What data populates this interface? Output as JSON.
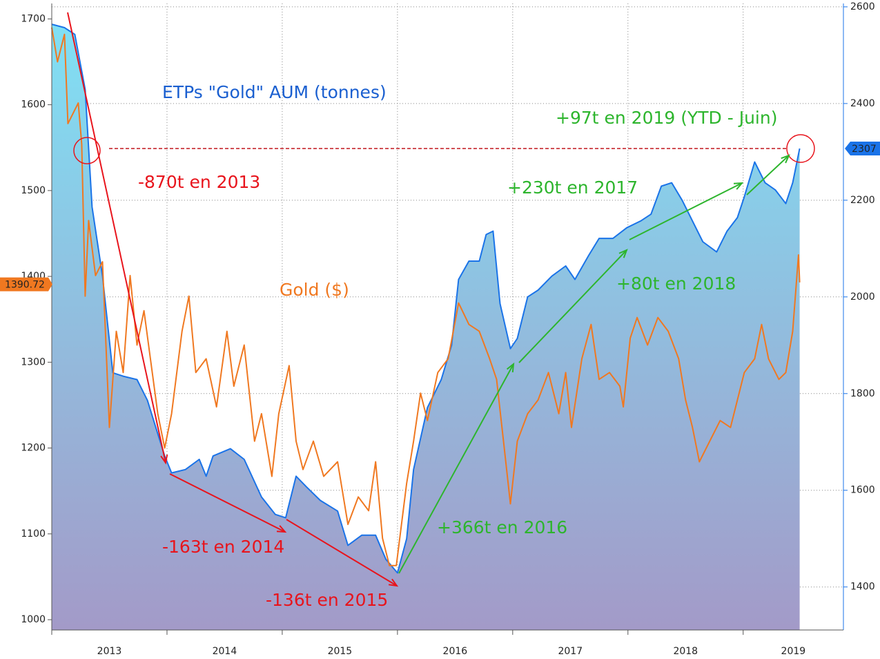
{
  "chart_data": {
    "type": "line",
    "annotations": [
      {
        "text": "ETPs \"Gold\" AUM (tonnes)",
        "color": "#1a5fd0"
      },
      {
        "text": "Gold ($)",
        "color": "#f07820"
      },
      {
        "text": "-870t en 2013",
        "color": "#e8141c"
      },
      {
        "text": "-163t en 2014",
        "color": "#e8141c"
      },
      {
        "text": "-136t en 2015",
        "color": "#e8141c"
      },
      {
        "text": "+366t en 2016",
        "color": "#2db52d"
      },
      {
        "text": "+230t en 2017",
        "color": "#2db52d"
      },
      {
        "text": "+80t en 2018",
        "color": "#2db52d"
      },
      {
        "text": "+97t en 2019 (YTD - Juin)",
        "color": "#2db52d"
      }
    ],
    "xlim": [
      2013,
      2019.87
    ],
    "xticks": [
      2013,
      2014,
      2015,
      2016,
      2017,
      2018,
      2019
    ],
    "ylim": [
      988,
      1718
    ],
    "yticks": [
      1000,
      1100,
      1200,
      1300,
      1400,
      1500,
      1600,
      1700
    ],
    "y2lim": [
      1311,
      2607
    ],
    "y2ticks": [
      1400,
      1600,
      1800,
      2000,
      2200,
      2400,
      2600
    ],
    "grid": true,
    "series": [
      {
        "name": "Gold ($)",
        "color": "#f07820",
        "axis": "y",
        "last_value": 1390.72,
        "x": [
          2013.0,
          2013.05,
          2013.11,
          2013.14,
          2013.23,
          2013.26,
          2013.29,
          2013.32,
          2013.38,
          2013.44,
          2013.5,
          2013.56,
          2013.62,
          2013.68,
          2013.74,
          2013.8,
          2013.92,
          2013.98,
          2014.04,
          2014.13,
          2014.19,
          2014.25,
          2014.34,
          2014.43,
          2014.52,
          2014.58,
          2014.67,
          2014.76,
          2014.82,
          2014.91,
          2014.97,
          2015.06,
          2015.12,
          2015.18,
          2015.27,
          2015.36,
          2015.48,
          2015.57,
          2015.66,
          2015.75,
          2015.81,
          2015.87,
          2015.93,
          2015.99,
          2016.08,
          2016.14,
          2016.2,
          2016.26,
          2016.35,
          2016.44,
          2016.53,
          2016.62,
          2016.71,
          2016.8,
          2016.86,
          2016.92,
          2016.98,
          2017.04,
          2017.13,
          2017.22,
          2017.31,
          2017.4,
          2017.46,
          2017.51,
          2017.6,
          2017.68,
          2017.75,
          2017.84,
          2017.93,
          2017.96,
          2018.02,
          2018.08,
          2018.17,
          2018.26,
          2018.35,
          2018.44,
          2018.5,
          2018.56,
          2018.62,
          2018.71,
          2018.8,
          2018.89,
          2018.95,
          2019.01,
          2019.1,
          2019.16,
          2019.22,
          2019.31,
          2019.37,
          2019.43,
          2019.48,
          2019.49
        ],
        "values": [
          1690,
          1650,
          1682,
          1578,
          1602,
          1554,
          1377,
          1465,
          1401,
          1417,
          1224,
          1336,
          1288,
          1401,
          1320,
          1360,
          1240,
          1200,
          1240,
          1336,
          1377,
          1288,
          1304,
          1248,
          1336,
          1272,
          1320,
          1208,
          1240,
          1167,
          1240,
          1296,
          1208,
          1175,
          1208,
          1167,
          1184,
          1111,
          1143,
          1127,
          1184,
          1095,
          1063,
          1063,
          1159,
          1208,
          1264,
          1232,
          1288,
          1304,
          1369,
          1344,
          1336,
          1304,
          1280,
          1208,
          1135,
          1208,
          1240,
          1256,
          1288,
          1240,
          1288,
          1224,
          1304,
          1344,
          1280,
          1288,
          1272,
          1248,
          1328,
          1352,
          1320,
          1352,
          1336,
          1304,
          1256,
          1224,
          1184,
          1208,
          1232,
          1224,
          1256,
          1288,
          1304,
          1344,
          1304,
          1280,
          1288,
          1336,
          1425,
          1393
        ]
      },
      {
        "name": "ETPs \"Gold\" AUM (tonnes)",
        "color": "#1a73e8",
        "axis": "y2",
        "last_value": 2307,
        "x": [
          2013.0,
          2013.11,
          2013.2,
          2013.29,
          2013.35,
          2013.44,
          2013.53,
          2013.62,
          2013.74,
          2013.83,
          2013.98,
          2014.04,
          2014.16,
          2014.28,
          2014.34,
          2014.4,
          2014.55,
          2014.67,
          2014.82,
          2014.94,
          2015.03,
          2015.12,
          2015.21,
          2015.33,
          2015.48,
          2015.57,
          2015.69,
          2015.81,
          2015.9,
          2016.0,
          2016.08,
          2016.14,
          2016.26,
          2016.38,
          2016.47,
          2016.53,
          2016.62,
          2016.71,
          2016.77,
          2016.83,
          2016.89,
          2016.98,
          2017.04,
          2017.13,
          2017.22,
          2017.34,
          2017.46,
          2017.54,
          2017.66,
          2017.75,
          2017.87,
          2017.99,
          2018.11,
          2018.2,
          2018.29,
          2018.38,
          2018.47,
          2018.56,
          2018.65,
          2018.77,
          2018.86,
          2018.95,
          2019.01,
          2019.1,
          2019.19,
          2019.28,
          2019.37,
          2019.43,
          2019.49
        ],
        "values": [
          2564,
          2557,
          2543,
          2429,
          2186,
          2043,
          1843,
          1836,
          1829,
          1786,
          1671,
          1636,
          1643,
          1664,
          1629,
          1671,
          1686,
          1664,
          1586,
          1550,
          1543,
          1629,
          1607,
          1579,
          1557,
          1486,
          1507,
          1507,
          1457,
          1429,
          1500,
          1643,
          1771,
          1829,
          1900,
          2036,
          2074,
          2074,
          2129,
          2136,
          1986,
          1893,
          1914,
          2000,
          2014,
          2043,
          2064,
          2036,
          2086,
          2121,
          2121,
          2143,
          2157,
          2171,
          2229,
          2236,
          2200,
          2157,
          2114,
          2093,
          2136,
          2164,
          2207,
          2279,
          2236,
          2221,
          2193,
          2236,
          2307
        ]
      }
    ]
  }
}
